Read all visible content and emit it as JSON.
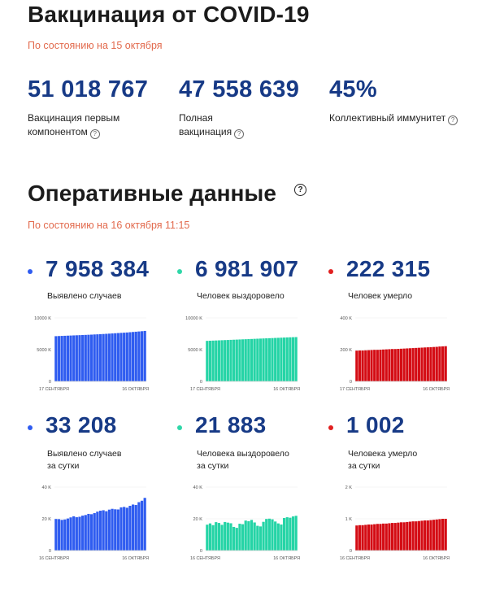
{
  "vaccination": {
    "title": "Вакцинация от COVID-19",
    "as_of": "По состоянию на 15 октября",
    "stats": [
      {
        "value": "51 018 767",
        "label_line1": "Вакцинация первым",
        "label_line2": "компонентом"
      },
      {
        "value": "47 558 639",
        "label_line1": "Полная",
        "label_line2": "вакцинация"
      },
      {
        "value": "45%",
        "label_line1": "Коллективный иммунитет",
        "label_line2": ""
      }
    ],
    "help_glyph": "?"
  },
  "operational": {
    "title": "Оперативные данные",
    "help_glyph": "?",
    "as_of": "По состоянию на 16 октября 11:15",
    "cards": [
      {
        "value": "7 958 384",
        "label_line1": "Выявлено случаев",
        "label_line2": "",
        "color": "#2f5cf0",
        "bar_color": "#2f5cf0"
      },
      {
        "value": "6 981 907",
        "label_line1": "Человек выздоровело",
        "label_line2": "",
        "color": "#2fd7a8",
        "bar_color": "#25d4a6"
      },
      {
        "value": "222 315",
        "label_line1": "Человек умерло",
        "label_line2": "",
        "color": "#e12020",
        "bar_color": "#d40c14"
      },
      {
        "value": "33 208",
        "label_line1": "Выявлено случаев",
        "label_line2": "за сутки",
        "color": "#2f5cf0",
        "bar_color": "#2f5cf0"
      },
      {
        "value": "21 883",
        "label_line1": "Человека выздоровело",
        "label_line2": "за сутки",
        "color": "#2fd7a8",
        "bar_color": "#25d4a6"
      },
      {
        "value": "1 002",
        "label_line1": "Человека умерло",
        "label_line2": "за сутки",
        "color": "#e12020",
        "bar_color": "#d40c14"
      }
    ]
  },
  "chart_data": [
    {
      "type": "bar",
      "series_name": "Выявлено случаев",
      "x_start_label": "17 СЕНТЯБРЯ",
      "x_end_label": "16 ОКТЯБРЯ",
      "ylim": [
        0,
        10000
      ],
      "yticks": [
        0,
        5000,
        10000
      ],
      "ytick_labels": [
        "0",
        "5000 K",
        "10000 K"
      ],
      "values": [
        7130,
        7150,
        7170,
        7190,
        7210,
        7230,
        7250,
        7270,
        7290,
        7310,
        7330,
        7350,
        7370,
        7400,
        7420,
        7450,
        7470,
        7500,
        7530,
        7560,
        7590,
        7620,
        7650,
        7680,
        7710,
        7750,
        7790,
        7830,
        7870,
        7910,
        7958
      ]
    },
    {
      "type": "bar",
      "series_name": "Человек выздоровело",
      "x_start_label": "17 СЕНТЯБРЯ",
      "x_end_label": "16 ОКТЯБРЯ",
      "ylim": [
        0,
        10000
      ],
      "yticks": [
        0,
        5000,
        10000
      ],
      "ytick_labels": [
        "0",
        "5000 K",
        "10000 K"
      ],
      "values": [
        6390,
        6410,
        6430,
        6450,
        6470,
        6490,
        6510,
        6530,
        6550,
        6570,
        6590,
        6610,
        6630,
        6650,
        6670,
        6690,
        6710,
        6730,
        6750,
        6770,
        6790,
        6810,
        6830,
        6850,
        6870,
        6890,
        6910,
        6930,
        6950,
        6965,
        6982
      ]
    },
    {
      "type": "bar",
      "series_name": "Человек умерло",
      "x_start_label": "17 СЕНТЯБРЯ",
      "x_end_label": "16 ОКТЯБРЯ",
      "ylim": [
        0,
        400
      ],
      "yticks": [
        0,
        200,
        400
      ],
      "ytick_labels": [
        "0",
        "200 K",
        "400 K"
      ],
      "values": [
        194,
        195,
        195,
        196,
        197,
        198,
        199,
        199,
        200,
        201,
        202,
        203,
        204,
        204,
        205,
        206,
        207,
        208,
        209,
        210,
        211,
        212,
        213,
        214,
        215,
        216,
        217,
        218,
        220,
        221,
        222
      ]
    },
    {
      "type": "bar",
      "series_name": "Выявлено случаев за сутки",
      "x_start_label": "16 СЕНТЯБРЯ",
      "x_end_label": "16 ОКТЯБРЯ",
      "ylim": [
        0,
        40
      ],
      "yticks": [
        0,
        20,
        40
      ],
      "ytick_labels": [
        "0",
        "20 K",
        "40 K"
      ],
      "values": [
        19.9,
        19.8,
        19.3,
        19.6,
        20.2,
        20.9,
        21.6,
        21.0,
        21.3,
        22.0,
        22.4,
        23.1,
        22.9,
        23.6,
        24.5,
        25.1,
        25.4,
        24.8,
        25.8,
        26.3,
        26.0,
        25.9,
        27.2,
        27.5,
        27.0,
        28.2,
        29.0,
        28.7,
        30.5,
        31.4,
        33.2
      ]
    },
    {
      "type": "bar",
      "series_name": "Человека выздоровело за сутки",
      "x_start_label": "16 СЕНТЯБРЯ",
      "x_end_label": "16 ОКТЯБРЯ",
      "ylim": [
        0,
        40
      ],
      "yticks": [
        0,
        20,
        40
      ],
      "ytick_labels": [
        "0",
        "20 K",
        "40 K"
      ],
      "values": [
        16.3,
        17.1,
        16.0,
        17.9,
        17.4,
        16.2,
        18.0,
        17.6,
        17.2,
        14.9,
        14.3,
        16.9,
        16.6,
        18.9,
        18.5,
        19.3,
        17.7,
        15.6,
        15.2,
        18.1,
        19.9,
        20.1,
        19.7,
        18.3,
        17.1,
        16.4,
        20.5,
        21.0,
        20.7,
        21.5,
        21.9
      ]
    },
    {
      "type": "bar",
      "series_name": "Человека умерло за сутки",
      "x_start_label": "16 СЕНТЯБРЯ",
      "x_end_label": "16 ОКТЯБРЯ",
      "ylim": [
        0,
        2
      ],
      "yticks": [
        0,
        1,
        2
      ],
      "ytick_labels": [
        "0",
        "1 K",
        "2 K"
      ],
      "values": [
        0.79,
        0.8,
        0.8,
        0.81,
        0.82,
        0.82,
        0.83,
        0.84,
        0.84,
        0.85,
        0.85,
        0.86,
        0.87,
        0.87,
        0.88,
        0.89,
        0.89,
        0.9,
        0.91,
        0.92,
        0.92,
        0.93,
        0.94,
        0.95,
        0.95,
        0.96,
        0.97,
        0.98,
        0.99,
        1.0,
        1.0
      ]
    }
  ]
}
